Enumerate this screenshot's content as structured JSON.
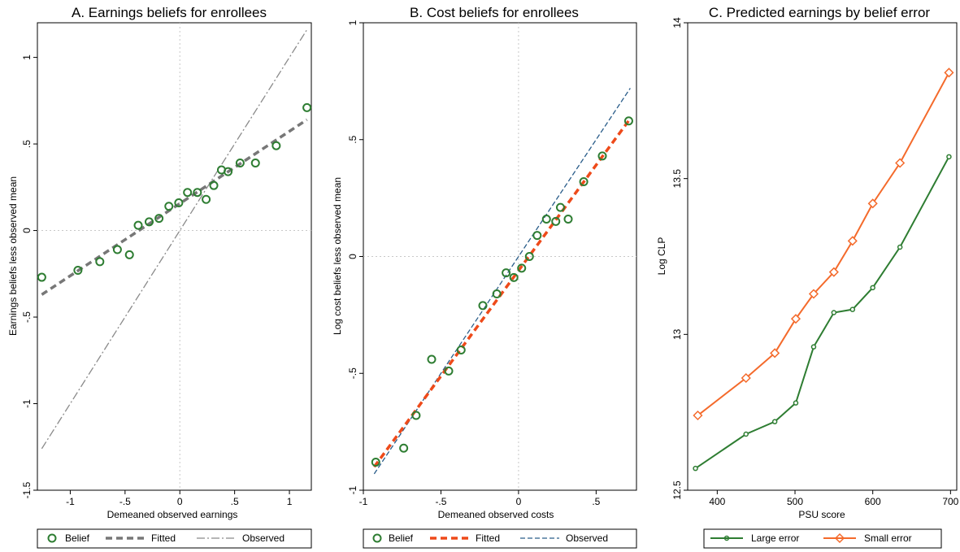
{
  "chart_data": [
    {
      "type": "scatter",
      "title": "A. Earnings beliefs for enrollees",
      "xlabel": "Demeaned observed earnings",
      "ylabel": "Earnings beliefs less observed mean",
      "xlim": [
        -1.3,
        1.2
      ],
      "ylim": [
        -1.5,
        1.2
      ],
      "xticks": [
        {
          "v": -1,
          "label": "-1"
        },
        {
          "v": -0.5,
          "label": "-.5"
        },
        {
          "v": 0,
          "label": "0"
        },
        {
          "v": 0.5,
          "label": ".5"
        },
        {
          "v": 1,
          "label": "1"
        }
      ],
      "yticks": [
        {
          "v": -1.5,
          "label": "-1.5"
        },
        {
          "v": -1,
          "label": "-1"
        },
        {
          "v": -0.5,
          "label": "-.5"
        },
        {
          "v": 0,
          "label": "0"
        },
        {
          "v": 0.5,
          "label": ".5"
        },
        {
          "v": 1,
          "label": "1"
        }
      ],
      "zero_lines": true,
      "legend_position": "bottom",
      "series": [
        {
          "name": "Belief",
          "kind": "points",
          "color": "#2e7d32",
          "x": [
            -1.26,
            -0.93,
            -0.73,
            -0.57,
            -0.46,
            -0.38,
            -0.28,
            -0.19,
            -0.1,
            -0.01,
            0.07,
            0.16,
            0.24,
            0.31,
            0.38,
            0.44,
            0.55,
            0.69,
            0.88,
            1.16
          ],
          "y": [
            -0.27,
            -0.23,
            -0.18,
            -0.11,
            -0.14,
            0.03,
            0.05,
            0.07,
            0.14,
            0.16,
            0.22,
            0.22,
            0.18,
            0.26,
            0.35,
            0.34,
            0.39,
            0.39,
            0.49,
            0.71
          ]
        },
        {
          "name": "Fitted",
          "kind": "line",
          "style": "dash",
          "color": "#777777",
          "x": [
            -1.26,
            1.16
          ],
          "y": [
            -0.37,
            0.64
          ]
        },
        {
          "name": "Observed",
          "kind": "line",
          "style": "dashdot",
          "color": "#8a8a8a",
          "x": [
            -1.26,
            1.16
          ],
          "y": [
            -1.26,
            1.16
          ]
        }
      ]
    },
    {
      "type": "scatter",
      "title": "B. Cost beliefs for enrollees",
      "xlabel": "Demeaned observed costs",
      "ylabel": "Log cost beliefs less observed mean",
      "xlim": [
        -1.0,
        0.76
      ],
      "ylim": [
        -1.0,
        1.0
      ],
      "xticks": [
        {
          "v": -1,
          "label": "-1"
        },
        {
          "v": -0.5,
          "label": "-.5"
        },
        {
          "v": 0,
          "label": "0"
        },
        {
          "v": 0.5,
          "label": ".5"
        }
      ],
      "yticks": [
        {
          "v": -1,
          "label": "-1"
        },
        {
          "v": -0.5,
          "label": "-.5"
        },
        {
          "v": 0,
          "label": "0"
        },
        {
          "v": 0.5,
          "label": ".5"
        },
        {
          "v": 1,
          "label": "1"
        }
      ],
      "zero_lines": true,
      "legend_position": "bottom",
      "series": [
        {
          "name": "Belief",
          "kind": "points",
          "color": "#2e7d32",
          "x": [
            -0.92,
            -0.74,
            -0.66,
            -0.56,
            -0.45,
            -0.37,
            -0.23,
            -0.14,
            -0.08,
            -0.03,
            0.02,
            0.07,
            0.12,
            0.18,
            0.24,
            0.27,
            0.32,
            0.42,
            0.54,
            0.71
          ],
          "y": [
            -0.88,
            -0.82,
            -0.68,
            -0.44,
            -0.49,
            -0.4,
            -0.21,
            -0.16,
            -0.07,
            -0.09,
            -0.05,
            0.0,
            0.09,
            0.16,
            0.15,
            0.21,
            0.16,
            0.32,
            0.43,
            0.58
          ]
        },
        {
          "name": "Fitted",
          "kind": "line",
          "style": "dash",
          "color": "#ee4a1a",
          "x": [
            -0.93,
            0.72
          ],
          "y": [
            -0.9,
            0.59
          ]
        },
        {
          "name": "Observed",
          "kind": "line",
          "style": "dash",
          "color": "#2a5d8a",
          "x": [
            -0.93,
            0.72
          ],
          "y": [
            -0.93,
            0.72
          ]
        }
      ]
    },
    {
      "type": "line",
      "title": "C. Predicted earnings by belief error",
      "xlabel": "PSU score",
      "ylabel": "Log CLP",
      "xlim": [
        362,
        708
      ],
      "ylim": [
        12.5,
        14.0
      ],
      "xticks": [
        {
          "v": 400,
          "label": "400"
        },
        {
          "v": 500,
          "label": "500"
        },
        {
          "v": 600,
          "label": "600"
        },
        {
          "v": 700,
          "label": "700"
        }
      ],
      "yticks": [
        {
          "v": 12.5,
          "label": "12.5"
        },
        {
          "v": 13,
          "label": "13"
        },
        {
          "v": 13.5,
          "label": "13.5"
        },
        {
          "v": 14,
          "label": "14"
        }
      ],
      "zero_lines": false,
      "legend_position": "bottom",
      "series": [
        {
          "name": "Large error",
          "kind": "line-points",
          "marker": "circle",
          "color": "#2e7d32",
          "x": [
            372,
            437,
            474,
            501,
            524,
            550,
            574,
            600,
            635,
            698
          ],
          "y": [
            12.57,
            12.68,
            12.72,
            12.78,
            12.96,
            13.07,
            13.08,
            13.15,
            13.28,
            13.57
          ]
        },
        {
          "name": "Small error",
          "kind": "line-points",
          "marker": "diamond",
          "color": "#f46a2b",
          "x": [
            375,
            437,
            474,
            501,
            524,
            550,
            574,
            600,
            635,
            698
          ],
          "y": [
            12.74,
            12.86,
            12.94,
            13.05,
            13.13,
            13.2,
            13.3,
            13.42,
            13.55,
            13.84
          ]
        }
      ]
    }
  ]
}
